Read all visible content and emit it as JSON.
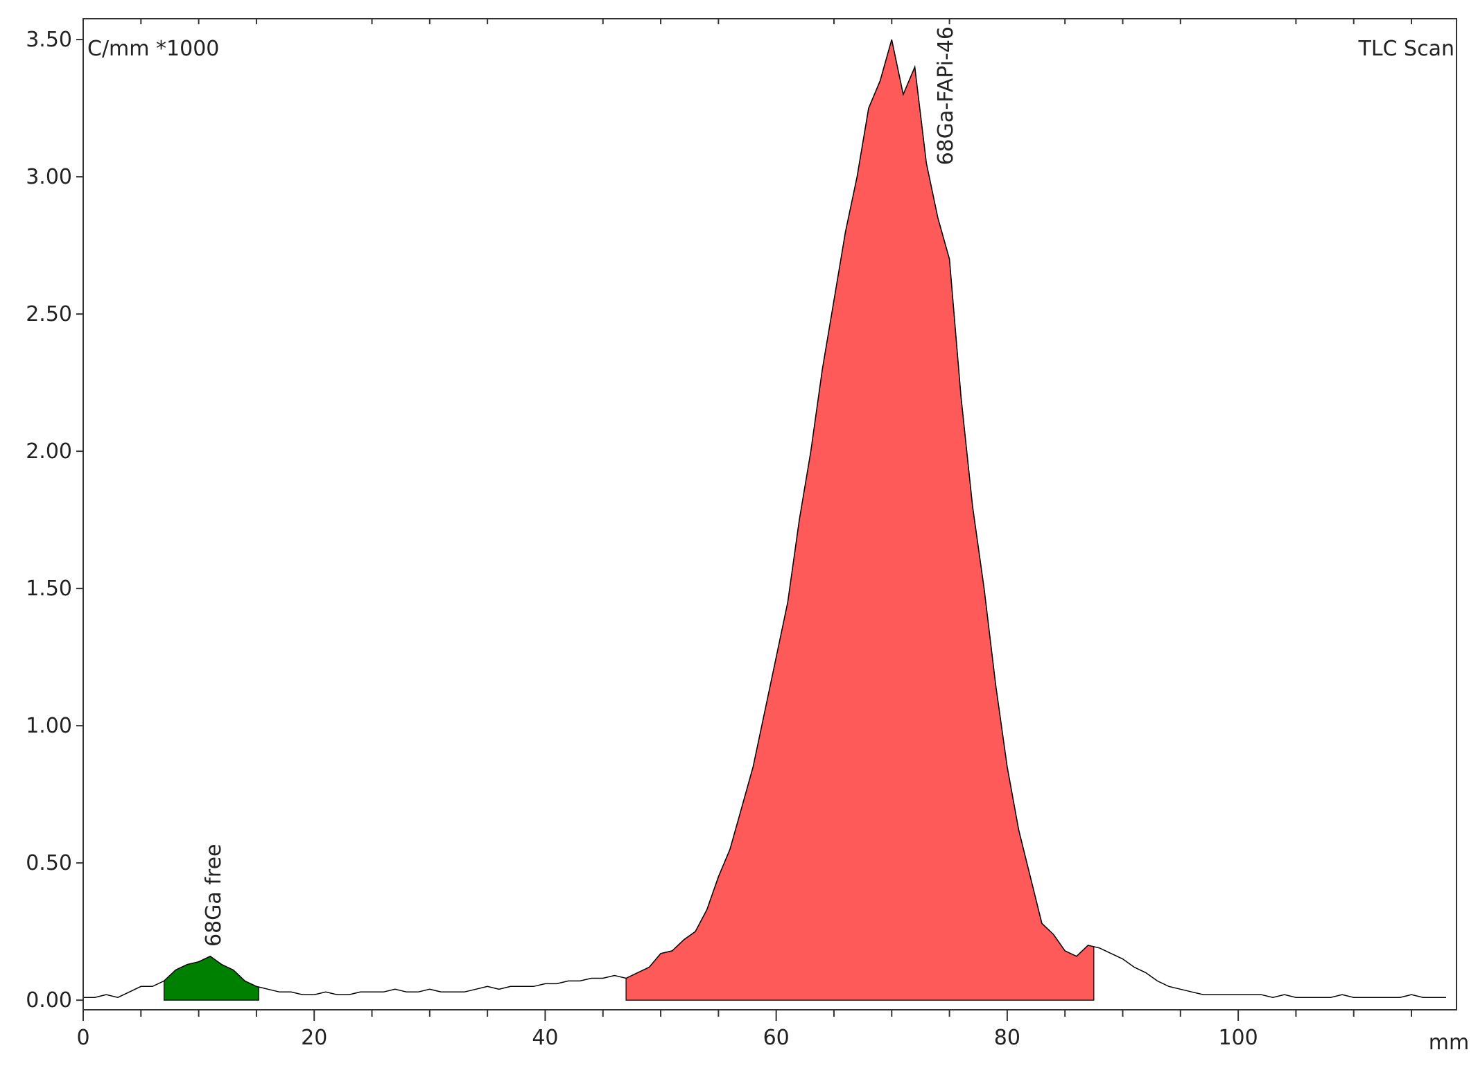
{
  "chart_data": {
    "type": "line",
    "title": "TLC Scan",
    "y_label": "C/mm *1000",
    "x_label": "mm",
    "xlim": [
      0,
      118.9
    ],
    "ylim": [
      -0.035,
      3.576
    ],
    "xticks": [
      0,
      20,
      40,
      60,
      80,
      100
    ],
    "xminorticks": [
      5,
      10,
      15,
      25,
      30,
      35,
      45,
      50,
      55,
      65,
      70,
      75,
      85,
      90,
      95,
      105,
      110,
      115
    ],
    "yticks": [
      {
        "value": 0,
        "label": "0.00"
      },
      {
        "value": 0.5,
        "label": "0.50"
      },
      {
        "value": 1,
        "label": "1.00"
      },
      {
        "value": 1.5,
        "label": "1.50"
      },
      {
        "value": 2,
        "label": "2.00"
      },
      {
        "value": 2.5,
        "label": "2.50"
      },
      {
        "value": 3,
        "label": "3.00"
      },
      {
        "value": 3.5,
        "label": "3.50"
      }
    ],
    "color": "#000000",
    "x": [
      0,
      1,
      2,
      3,
      4,
      5,
      6,
      7,
      8,
      9,
      10,
      11,
      12,
      13,
      14,
      15,
      16,
      17,
      18,
      19,
      20,
      21,
      22,
      23,
      24,
      25,
      26,
      27,
      28,
      29,
      30,
      31,
      32,
      33,
      34,
      35,
      36,
      37,
      38,
      39,
      40,
      41,
      42,
      43,
      44,
      45,
      46,
      47,
      48,
      49,
      50,
      51,
      52,
      53,
      54,
      55,
      56,
      57,
      58,
      59,
      60,
      61,
      62,
      63,
      64,
      65,
      66,
      67,
      68,
      69,
      70,
      71,
      72,
      73,
      74,
      75,
      76,
      77,
      78,
      79,
      80,
      81,
      82,
      83,
      84,
      85,
      86,
      87,
      88,
      89,
      90,
      91,
      92,
      93,
      94,
      95,
      96,
      97,
      98,
      99,
      100,
      101,
      102,
      103,
      104,
      105,
      106,
      107,
      108,
      109,
      110,
      111,
      112,
      113,
      114,
      115,
      116,
      117,
      118
    ],
    "values": [
      0.01,
      0.01,
      0.02,
      0.01,
      0.03,
      0.05,
      0.05,
      0.07,
      0.11,
      0.13,
      0.14,
      0.16,
      0.13,
      0.11,
      0.07,
      0.05,
      0.04,
      0.03,
      0.03,
      0.02,
      0.02,
      0.03,
      0.02,
      0.02,
      0.03,
      0.03,
      0.03,
      0.04,
      0.03,
      0.03,
      0.04,
      0.03,
      0.03,
      0.03,
      0.04,
      0.05,
      0.04,
      0.05,
      0.05,
      0.05,
      0.06,
      0.06,
      0.07,
      0.07,
      0.08,
      0.08,
      0.09,
      0.08,
      0.1,
      0.12,
      0.17,
      0.18,
      0.22,
      0.25,
      0.33,
      0.45,
      0.55,
      0.7,
      0.85,
      1.05,
      1.25,
      1.45,
      1.75,
      2.0,
      2.3,
      2.55,
      2.8,
      3.0,
      3.25,
      3.35,
      3.5,
      3.3,
      3.4,
      3.05,
      2.85,
      2.7,
      2.2,
      1.8,
      1.5,
      1.15,
      0.85,
      0.62,
      0.45,
      0.28,
      0.24,
      0.18,
      0.16,
      0.2,
      0.19,
      0.17,
      0.15,
      0.12,
      0.1,
      0.07,
      0.05,
      0.04,
      0.03,
      0.02,
      0.02,
      0.02,
      0.02,
      0.02,
      0.02,
      0.01,
      0.02,
      0.01,
      0.01,
      0.01,
      0.01,
      0.02,
      0.01,
      0.01,
      0.01,
      0.01,
      0.01,
      0.02,
      0.01,
      0.01,
      0.01
    ],
    "regions": [
      {
        "label": "68Ga free",
        "start": 7,
        "end": 15.2,
        "color": "#008000"
      },
      {
        "label": "68Ga-FAPi-46",
        "start": 47,
        "end": 87.5,
        "color": "#ff5a5a"
      }
    ]
  }
}
